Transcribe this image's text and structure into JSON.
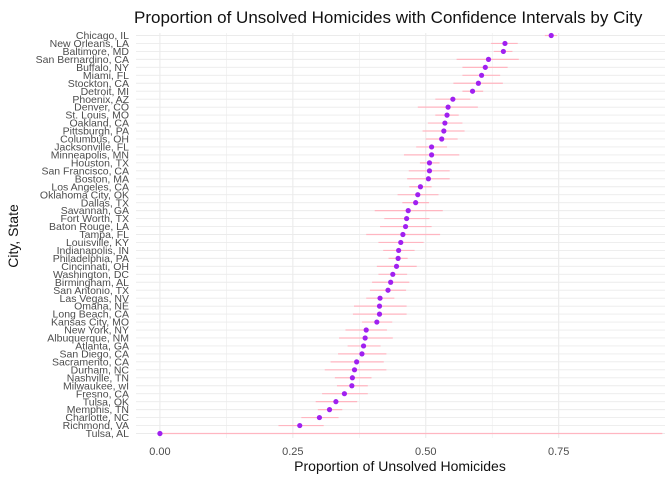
{
  "chart_data": {
    "type": "scatter",
    "title": "Proportion of Unsolved Homicides with Confidence Intervals by City",
    "xlabel": "Proportion of Unsolved Homicides",
    "ylabel": "City, State",
    "xlim": [
      -0.045,
      0.95
    ],
    "x_ticks": [
      0.0,
      0.25,
      0.5,
      0.75
    ],
    "x_tick_labels": [
      "0.00",
      "0.25",
      "0.50",
      "0.75"
    ],
    "grid": true,
    "colors": {
      "point": "#a020f0",
      "errorbar": "#ffb6c1",
      "grid": "#ebebeb"
    },
    "points": [
      {
        "city": "Chicago, IL",
        "estimate": 0.736,
        "conf_low": 0.724,
        "conf_high": 0.747
      },
      {
        "city": "New Orleans, LA",
        "estimate": 0.649,
        "conf_low": 0.623,
        "conf_high": 0.673
      },
      {
        "city": "Baltimore, MD",
        "estimate": 0.646,
        "conf_low": 0.628,
        "conf_high": 0.663
      },
      {
        "city": "San Bernardino, CA",
        "estimate": 0.618,
        "conf_low": 0.558,
        "conf_high": 0.675
      },
      {
        "city": "Buffalo, NY",
        "estimate": 0.612,
        "conf_low": 0.569,
        "conf_high": 0.654
      },
      {
        "city": "Miami, FL",
        "estimate": 0.605,
        "conf_low": 0.569,
        "conf_high": 0.64
      },
      {
        "city": "Stockton, CA",
        "estimate": 0.599,
        "conf_low": 0.552,
        "conf_high": 0.645
      },
      {
        "city": "Detroit, MI",
        "estimate": 0.588,
        "conf_low": 0.569,
        "conf_high": 0.608
      },
      {
        "city": "Phoenix, AZ",
        "estimate": 0.551,
        "conf_low": 0.518,
        "conf_high": 0.584
      },
      {
        "city": "Denver, CO",
        "estimate": 0.542,
        "conf_low": 0.485,
        "conf_high": 0.598
      },
      {
        "city": "St. Louis, MO",
        "estimate": 0.54,
        "conf_low": 0.518,
        "conf_high": 0.562
      },
      {
        "city": "Oakland, CA",
        "estimate": 0.536,
        "conf_low": 0.504,
        "conf_high": 0.569
      },
      {
        "city": "Pittsburgh, PA",
        "estimate": 0.534,
        "conf_low": 0.494,
        "conf_high": 0.573
      },
      {
        "city": "Columbus, OH",
        "estimate": 0.53,
        "conf_low": 0.5,
        "conf_high": 0.56
      },
      {
        "city": "Jacksonville, FL",
        "estimate": 0.511,
        "conf_low": 0.482,
        "conf_high": 0.54
      },
      {
        "city": "Minneapolis, MN",
        "estimate": 0.511,
        "conf_low": 0.459,
        "conf_high": 0.563
      },
      {
        "city": "Houston, TX",
        "estimate": 0.507,
        "conf_low": 0.489,
        "conf_high": 0.526
      },
      {
        "city": "San Francisco, CA",
        "estimate": 0.507,
        "conf_low": 0.468,
        "conf_high": 0.545
      },
      {
        "city": "Boston, MA",
        "estimate": 0.505,
        "conf_low": 0.465,
        "conf_high": 0.545
      },
      {
        "city": "Los Angeles, CA",
        "estimate": 0.49,
        "conf_low": 0.469,
        "conf_high": 0.511
      },
      {
        "city": "Oklahoma City, OK",
        "estimate": 0.485,
        "conf_low": 0.447,
        "conf_high": 0.524
      },
      {
        "city": "Dallas, TX",
        "estimate": 0.481,
        "conf_low": 0.456,
        "conf_high": 0.506
      },
      {
        "city": "Savannah, GA",
        "estimate": 0.467,
        "conf_low": 0.404,
        "conf_high": 0.532
      },
      {
        "city": "Fort Worth, TX",
        "estimate": 0.464,
        "conf_low": 0.422,
        "conf_high": 0.507
      },
      {
        "city": "Baton Rouge, LA",
        "estimate": 0.462,
        "conf_low": 0.414,
        "conf_high": 0.511
      },
      {
        "city": "Tampa, FL",
        "estimate": 0.457,
        "conf_low": 0.388,
        "conf_high": 0.527
      },
      {
        "city": "Louisville, KY",
        "estimate": 0.453,
        "conf_low": 0.411,
        "conf_high": 0.496
      },
      {
        "city": "Indianapolis, IN",
        "estimate": 0.449,
        "conf_low": 0.42,
        "conf_high": 0.479
      },
      {
        "city": "Philadelphia, PA",
        "estimate": 0.448,
        "conf_low": 0.43,
        "conf_high": 0.466
      },
      {
        "city": "Cincinnati, OH",
        "estimate": 0.445,
        "conf_low": 0.408,
        "conf_high": 0.483
      },
      {
        "city": "Washington, DC",
        "estimate": 0.438,
        "conf_low": 0.411,
        "conf_high": 0.465
      },
      {
        "city": "Birmingham, AL",
        "estimate": 0.434,
        "conf_low": 0.399,
        "conf_high": 0.469
      },
      {
        "city": "San Antonio, TX",
        "estimate": 0.429,
        "conf_low": 0.395,
        "conf_high": 0.463
      },
      {
        "city": "Las Vegas, NV",
        "estimate": 0.414,
        "conf_low": 0.388,
        "conf_high": 0.441
      },
      {
        "city": "Omaha, NE",
        "estimate": 0.413,
        "conf_low": 0.365,
        "conf_high": 0.464
      },
      {
        "city": "Long Beach, CA",
        "estimate": 0.413,
        "conf_low": 0.363,
        "conf_high": 0.464
      },
      {
        "city": "Kansas City, MO",
        "estimate": 0.408,
        "conf_low": 0.38,
        "conf_high": 0.437
      },
      {
        "city": "New York, NY",
        "estimate": 0.388,
        "conf_low": 0.349,
        "conf_high": 0.427
      },
      {
        "city": "Albuquerque, NM",
        "estimate": 0.386,
        "conf_low": 0.337,
        "conf_high": 0.438
      },
      {
        "city": "Atlanta, GA",
        "estimate": 0.383,
        "conf_low": 0.353,
        "conf_high": 0.415
      },
      {
        "city": "San Diego, CA",
        "estimate": 0.38,
        "conf_low": 0.335,
        "conf_high": 0.426
      },
      {
        "city": "Sacramento, CA",
        "estimate": 0.37,
        "conf_low": 0.321,
        "conf_high": 0.421
      },
      {
        "city": "Durham, NC",
        "estimate": 0.366,
        "conf_low": 0.31,
        "conf_high": 0.426
      },
      {
        "city": "Nashville, TN",
        "estimate": 0.362,
        "conf_low": 0.329,
        "conf_high": 0.398
      },
      {
        "city": "Milwaukee, wI",
        "estimate": 0.361,
        "conf_low": 0.333,
        "conf_high": 0.391
      },
      {
        "city": "Fresno, CA",
        "estimate": 0.347,
        "conf_low": 0.305,
        "conf_high": 0.391
      },
      {
        "city": "Tulsa, OK",
        "estimate": 0.331,
        "conf_low": 0.293,
        "conf_high": 0.371
      },
      {
        "city": "Memphis, TN",
        "estimate": 0.319,
        "conf_low": 0.297,
        "conf_high": 0.343
      },
      {
        "city": "Charlotte, NC",
        "estimate": 0.3,
        "conf_low": 0.266,
        "conf_high": 0.336
      },
      {
        "city": "Richmond, VA",
        "estimate": 0.263,
        "conf_low": 0.223,
        "conf_high": 0.308
      },
      {
        "city": "Tulsa, AL",
        "estimate": 0.0,
        "conf_low": 0.0,
        "conf_high": 0.945
      }
    ]
  }
}
